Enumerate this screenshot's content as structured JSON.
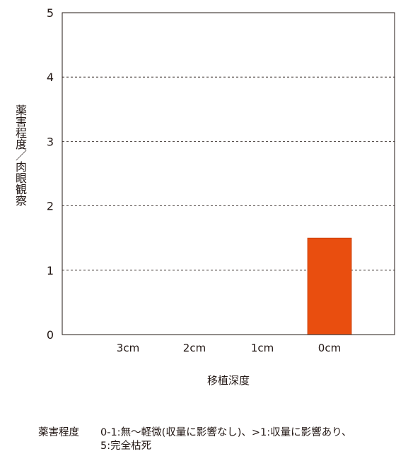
{
  "chart_data": {
    "type": "bar",
    "categories": [
      "3cm",
      "2cm",
      "1cm",
      "0cm"
    ],
    "values": [
      0,
      0,
      0,
      1.5
    ],
    "ylim": [
      0,
      5
    ],
    "yticks": [
      0,
      1,
      2,
      3,
      4,
      5
    ],
    "ylabel": "薬害程度／肉眼観察",
    "xlabel": "移植深度",
    "grid": "horizontal-dashed",
    "bar_color": "#e94e0f"
  },
  "note": {
    "label": "薬害程度",
    "line1": "0-1:無～軽微(収量に影響なし)、>1:収量に影響あり、",
    "line2": "5:完全枯死"
  }
}
